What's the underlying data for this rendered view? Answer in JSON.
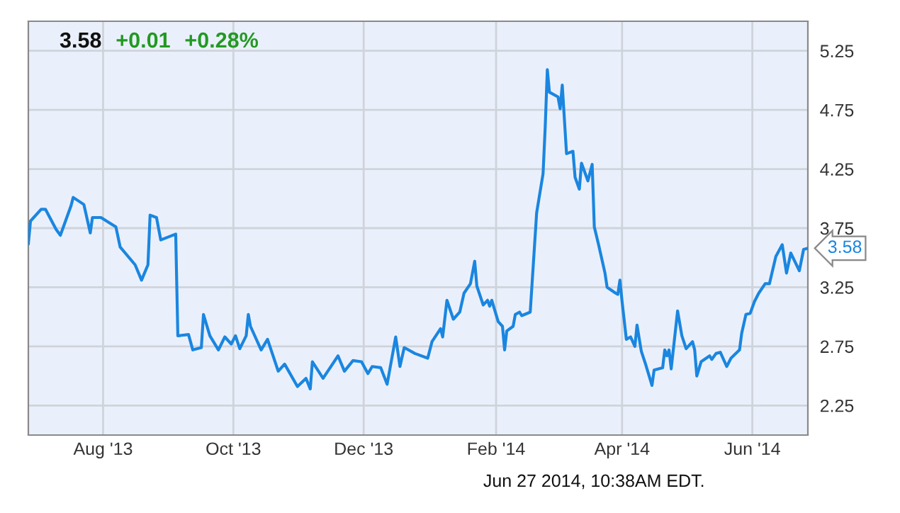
{
  "chart_data": {
    "type": "line",
    "x": [
      "2013-06-27",
      "2013-06-28",
      "2013-07-03",
      "2013-07-05",
      "2013-07-10",
      "2013-07-12",
      "2013-07-17",
      "2013-07-18",
      "2013-07-23",
      "2013-07-26",
      "2013-07-27",
      "2013-07-31",
      "2013-08-07",
      "2013-08-09",
      "2013-08-16",
      "2013-08-19",
      "2013-08-22",
      "2013-08-23",
      "2013-08-26",
      "2013-08-28",
      "2013-09-04",
      "2013-09-05",
      "2013-09-10",
      "2013-09-12",
      "2013-09-16",
      "2013-09-17",
      "2013-09-20",
      "2013-09-24",
      "2013-09-27",
      "2013-09-30",
      "2013-10-02",
      "2013-10-04",
      "2013-10-07",
      "2013-10-08",
      "2013-10-09",
      "2013-10-14",
      "2013-10-17",
      "2013-10-22",
      "2013-10-25",
      "2013-10-31",
      "2013-11-04",
      "2013-11-06",
      "2013-11-07",
      "2013-11-12",
      "2013-11-19",
      "2013-11-22",
      "2013-11-26",
      "2013-11-30",
      "2013-12-03",
      "2013-12-05",
      "2013-12-09",
      "2013-12-12",
      "2013-12-16",
      "2013-12-18",
      "2013-12-20",
      "2013-12-25",
      "2013-12-31",
      "2014-01-02",
      "2014-01-06",
      "2014-01-07",
      "2014-01-09",
      "2014-01-12",
      "2014-01-15",
      "2014-01-17",
      "2014-01-20",
      "2014-01-22",
      "2014-01-23",
      "2014-01-26",
      "2014-01-28",
      "2014-01-29",
      "2014-01-30",
      "2014-02-02",
      "2014-02-04",
      "2014-02-05",
      "2014-02-06",
      "2014-02-09",
      "2014-02-10",
      "2014-02-12",
      "2014-02-13",
      "2014-02-17",
      "2014-02-20",
      "2014-02-23",
      "2014-02-24",
      "2014-02-25",
      "2014-02-26",
      "2014-03-02",
      "2014-03-03",
      "2014-03-04",
      "2014-03-06",
      "2014-03-09",
      "2014-03-10",
      "2014-03-12",
      "2014-03-13",
      "2014-03-16",
      "2014-03-18",
      "2014-03-19",
      "2014-03-21",
      "2014-03-24",
      "2014-03-25",
      "2014-03-29",
      "2014-03-30",
      "2014-03-31",
      "2014-04-01",
      "2014-04-03",
      "2014-04-05",
      "2014-04-07",
      "2014-04-08",
      "2014-04-10",
      "2014-04-12",
      "2014-04-15",
      "2014-04-16",
      "2014-04-20",
      "2014-04-21",
      "2014-04-22",
      "2014-04-23",
      "2014-04-24",
      "2014-04-27",
      "2014-04-29",
      "2014-05-01",
      "2014-05-04",
      "2014-05-05",
      "2014-05-06",
      "2014-05-08",
      "2014-05-12",
      "2014-05-13",
      "2014-05-15",
      "2014-05-17",
      "2014-05-20",
      "2014-05-22",
      "2014-05-26",
      "2014-05-27",
      "2014-05-29",
      "2014-05-31",
      "2014-06-02",
      "2014-06-04",
      "2014-06-07",
      "2014-06-09",
      "2014-06-12",
      "2014-06-15",
      "2014-06-17",
      "2014-06-19",
      "2014-06-23",
      "2014-06-25",
      "2014-06-27"
    ],
    "series": [
      {
        "color": "#1a86e0",
        "values": [
          3.62,
          3.81,
          3.91,
          3.91,
          3.74,
          3.69,
          3.94,
          4.01,
          3.95,
          3.71,
          3.84,
          3.84,
          3.76,
          3.59,
          3.44,
          3.31,
          3.44,
          3.86,
          3.84,
          3.65,
          3.7,
          2.84,
          2.85,
          2.72,
          2.74,
          3.02,
          2.84,
          2.72,
          2.83,
          2.77,
          2.84,
          2.73,
          2.84,
          3.02,
          2.92,
          2.72,
          2.81,
          2.54,
          2.6,
          2.41,
          2.48,
          2.39,
          2.62,
          2.48,
          2.67,
          2.54,
          2.63,
          2.62,
          2.52,
          2.58,
          2.57,
          2.43,
          2.83,
          2.58,
          2.74,
          2.69,
          2.65,
          2.79,
          2.9,
          2.83,
          3.14,
          2.98,
          3.04,
          3.2,
          3.28,
          3.47,
          3.26,
          3.1,
          3.14,
          3.09,
          3.14,
          2.96,
          2.92,
          2.72,
          2.88,
          2.92,
          3.02,
          3.04,
          3.01,
          3.04,
          3.88,
          4.21,
          4.6,
          5.09,
          4.9,
          4.86,
          4.76,
          4.96,
          4.38,
          4.4,
          4.18,
          4.08,
          4.3,
          4.15,
          4.29,
          3.76,
          3.61,
          3.37,
          3.25,
          3.2,
          3.19,
          3.31,
          3.13,
          2.81,
          2.83,
          2.75,
          2.93,
          2.71,
          2.6,
          2.42,
          2.55,
          2.57,
          2.72,
          2.67,
          2.72,
          2.56,
          3.05,
          2.84,
          2.73,
          2.79,
          2.72,
          2.5,
          2.62,
          2.67,
          2.64,
          2.69,
          2.7,
          2.58,
          2.65,
          2.72,
          2.86,
          3.02,
          3.03,
          3.13,
          3.2,
          3.28,
          3.28,
          3.51,
          3.61,
          3.37,
          3.54,
          3.39,
          3.57,
          3.58
        ],
        "value_labels": [
          null,
          null,
          null,
          null,
          null,
          null,
          null,
          null,
          null,
          null,
          null,
          null,
          null,
          null,
          null,
          null,
          null,
          null,
          null,
          null,
          null,
          null,
          null,
          null,
          null,
          null,
          null,
          null,
          null,
          null,
          null,
          null,
          null,
          null,
          null,
          null,
          null,
          null,
          null,
          null,
          null,
          null,
          null,
          null,
          null,
          null,
          null,
          null,
          null,
          null,
          null,
          null,
          null,
          null,
          null,
          null,
          null,
          null,
          null,
          null,
          null,
          null,
          null,
          null,
          null,
          null,
          null,
          null,
          null,
          null,
          null,
          null,
          null,
          null,
          null,
          null,
          null,
          null,
          null,
          null,
          null,
          null,
          null,
          null,
          null,
          null,
          null,
          null,
          null,
          null,
          null,
          null,
          null,
          null,
          null,
          null,
          null,
          null,
          null,
          null,
          null,
          null,
          null,
          null,
          null,
          null,
          null,
          null,
          null,
          null,
          null,
          null,
          null,
          null,
          null,
          null,
          null,
          null,
          null,
          null,
          null,
          null,
          null,
          null,
          null,
          null,
          null,
          null,
          null,
          null,
          null,
          null,
          null,
          null,
          null,
          null,
          null,
          null,
          null,
          null,
          null,
          null,
          null,
          "3.58"
        ]
      }
    ],
    "xlim": [
      "2013-06-27",
      "2014-06-27"
    ],
    "xticks": [
      {
        "value": "2013-08-01",
        "label": "Aug '13"
      },
      {
        "value": "2013-10-01",
        "label": "Oct '13"
      },
      {
        "value": "2013-12-01",
        "label": "Dec '13"
      },
      {
        "value": "2014-02-01",
        "label": "Feb '14"
      },
      {
        "value": "2014-04-01",
        "label": "Apr '14"
      },
      {
        "value": "2014-06-01",
        "label": "Jun '14"
      }
    ],
    "ylim": [
      2.0,
      5.5
    ],
    "yticks": [
      2.25,
      2.75,
      3.25,
      3.75,
      4.25,
      4.75,
      5.25
    ],
    "grid": true,
    "marker": "none",
    "line_style": "solid",
    "annotations": [
      "3.58",
      "+0.01",
      "+0.28%",
      "Jun 27 2014, 10:38AM EDT."
    ]
  }
}
